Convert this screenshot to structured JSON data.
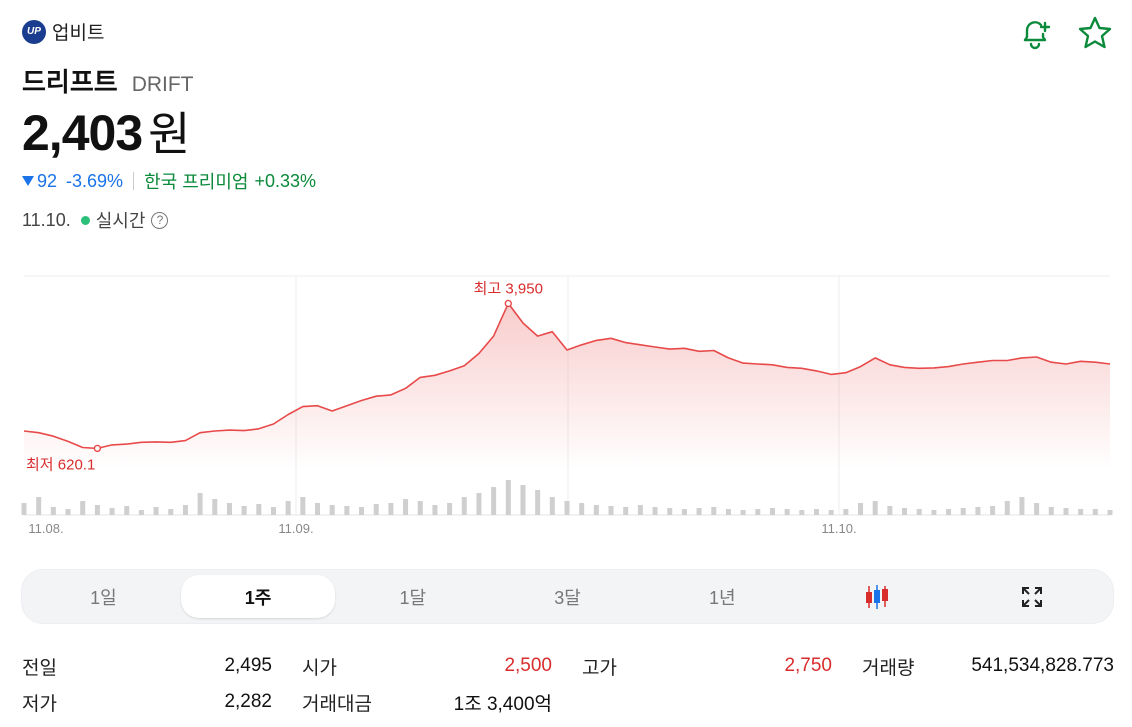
{
  "exchange": {
    "logo_text": "UP",
    "name": "업비트"
  },
  "coin": {
    "name": "드리프트",
    "symbol": "DRIFT"
  },
  "price": {
    "value": "2,403",
    "unit": "원"
  },
  "change": {
    "amount": "92",
    "percent": "-3.69%",
    "premium_label": "한국 프리미엄",
    "premium_value": "+0.33%"
  },
  "status": {
    "date": "11.10.",
    "realtime_label": "실시간",
    "help": "?"
  },
  "icons": {
    "alert": "bell-plus-icon",
    "favorite": "star-icon",
    "candle": "candlestick-icon",
    "expand": "expand-icon"
  },
  "colors": {
    "up": "#d92c2c",
    "down": "#1a73e8",
    "premium": "#0a8a3a",
    "live": "#2cbf7a"
  },
  "chart_data": {
    "type": "line",
    "x_tick_labels": [
      "11.08.",
      "11.09.",
      "11.10."
    ],
    "high_label": "최고 3,950",
    "low_label": "최저 620.1",
    "high": 3950,
    "low": 620.1,
    "series": [
      {
        "values": [
          1020,
          980,
          900,
          780,
          640,
          620.1,
          700,
          720,
          760,
          770,
          760,
          800,
          980,
          1020,
          1040,
          1030,
          1070,
          1180,
          1400,
          1580,
          1600,
          1480,
          1600,
          1720,
          1820,
          1850,
          2000,
          2250,
          2300,
          2400,
          2520,
          2800,
          3200,
          3950,
          3500,
          3200,
          3300,
          2880,
          3000,
          3100,
          3150,
          3050,
          3000,
          2950,
          2900,
          2920,
          2850,
          2870,
          2700,
          2580,
          2560,
          2540,
          2480,
          2460,
          2400,
          2320,
          2360,
          2500,
          2700,
          2540,
          2480,
          2460,
          2470,
          2500,
          2560,
          2600,
          2640,
          2640,
          2700,
          2720,
          2600,
          2560,
          2620,
          2600,
          2560
        ]
      }
    ],
    "volume": [
      12,
      18,
      8,
      6,
      14,
      10,
      7,
      9,
      5,
      8,
      6,
      10,
      22,
      16,
      12,
      9,
      11,
      8,
      14,
      18,
      12,
      10,
      9,
      8,
      11,
      12,
      16,
      14,
      10,
      12,
      18,
      22,
      28,
      35,
      30,
      25,
      18,
      14,
      12,
      10,
      9,
      8,
      10,
      8,
      7,
      6,
      7,
      8,
      6,
      5,
      6,
      7,
      6,
      5,
      6,
      5,
      6,
      12,
      14,
      9,
      7,
      6,
      5,
      6,
      7,
      8,
      9,
      14,
      18,
      12,
      8,
      7,
      6,
      6,
      5
    ]
  },
  "periods": [
    {
      "label": "1일",
      "active": false
    },
    {
      "label": "1주",
      "active": true
    },
    {
      "label": "1달",
      "active": false
    },
    {
      "label": "3달",
      "active": false
    },
    {
      "label": "1년",
      "active": false
    }
  ],
  "stats": {
    "prev_label": "전일",
    "prev_value": "2,495",
    "open_label": "시가",
    "open_value": "2,500",
    "high_label": "고가",
    "high_value": "2,750",
    "volume_label": "거래량",
    "volume_value": "541,534,828.773",
    "low_label": "저가",
    "low_value": "2,282",
    "amount_label": "거래대금",
    "amount_value": "1조 3,400억"
  }
}
